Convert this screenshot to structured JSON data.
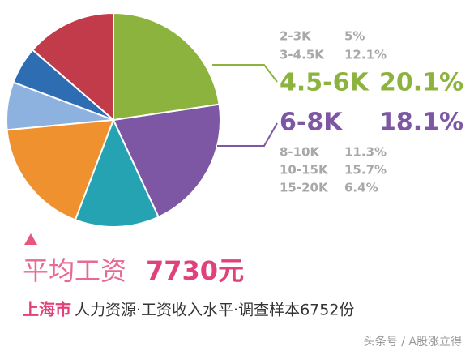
{
  "chart_data": {
    "type": "pie",
    "categories": [
      "2-3K",
      "3-4.5K",
      "4.5-6K",
      "6-8K",
      "8-10K",
      "10-15K",
      "15-20K"
    ],
    "values": [
      5,
      12.1,
      20.1,
      18.1,
      11.3,
      15.7,
      6.4
    ],
    "value_labels": [
      "5%",
      "12.1%",
      "20.1%",
      "18.1%",
      "11.3%",
      "15.7%",
      "6.4%"
    ],
    "colors": [
      "#2f6db3",
      "#c23b4b",
      "#8db33f",
      "#7d57a3",
      "#26a3b3",
      "#f0912f",
      "#8eb2e0"
    ],
    "title_label": "平均工资",
    "title_value": "7730元",
    "subtitle_city": "上海市",
    "subtitle": "人力资源·工资收入水平·调查样本6752份",
    "watermark": "头条号 / A股涨立得"
  }
}
